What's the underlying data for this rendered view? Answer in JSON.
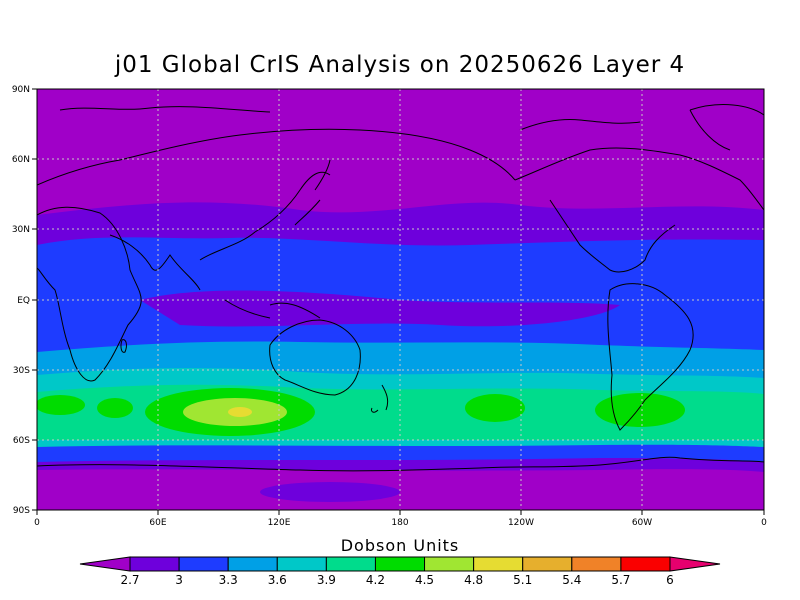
{
  "title": "j01 Global CrIS Analysis on 20250626 Layer 4",
  "map": {
    "projection": "latitude-longitude",
    "lat_ticks": [
      "90N",
      "60N",
      "30N",
      "EQ",
      "30S",
      "60S",
      "90S"
    ],
    "lon_ticks": [
      "0",
      "60E",
      "120E",
      "180",
      "120W",
      "60W",
      "0"
    ],
    "grid": true
  },
  "colorbar": {
    "title": "Dobson Units",
    "levels": [
      "2.7",
      "3",
      "3.3",
      "3.6",
      "3.9",
      "4.2",
      "4.5",
      "4.8",
      "5.1",
      "5.4",
      "5.7",
      "6"
    ],
    "colors": [
      "#a000c8",
      "#6e00dc",
      "#1e3cff",
      "#00a0e6",
      "#00c8c8",
      "#00dc8c",
      "#00dc00",
      "#a0e632",
      "#e6dc32",
      "#e6af2d",
      "#f08228",
      "#fa0000",
      "#e6006e"
    ]
  }
}
